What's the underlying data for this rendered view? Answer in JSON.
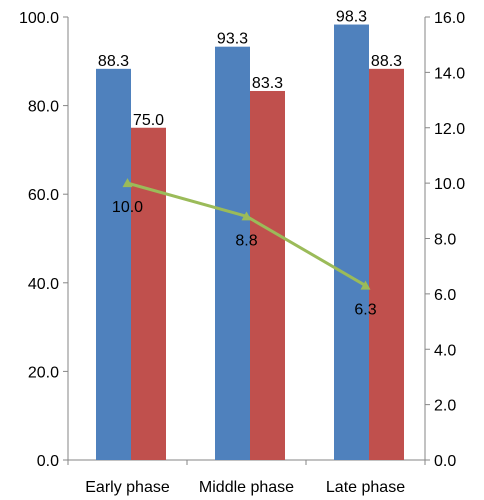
{
  "chart_data": {
    "type": "bar",
    "categories": [
      "Early phase",
      "Middle phase",
      "Late phase"
    ],
    "series": [
      {
        "type": "bar",
        "axis": "left",
        "color": "#4F81BD",
        "values": [
          88.3,
          93.3,
          98.3
        ]
      },
      {
        "type": "bar",
        "axis": "left",
        "color": "#C0504D",
        "values": [
          75.0,
          83.3,
          88.3
        ]
      },
      {
        "type": "line",
        "axis": "right",
        "color": "#9BBB59",
        "marker": "triangle",
        "values": [
          10.0,
          8.8,
          6.3
        ]
      }
    ],
    "y_left": {
      "lim": [
        0,
        100
      ],
      "ticks": [
        "0.0",
        "20.0",
        "40.0",
        "60.0",
        "80.0",
        "100.0"
      ]
    },
    "y_right": {
      "lim": [
        0,
        16
      ],
      "ticks": [
        "0.0",
        "2.0",
        "4.0",
        "6.0",
        "8.0",
        "10.0",
        "12.0",
        "14.0",
        "16.0"
      ]
    },
    "data_labels": true,
    "grid": false,
    "legend": "none"
  }
}
